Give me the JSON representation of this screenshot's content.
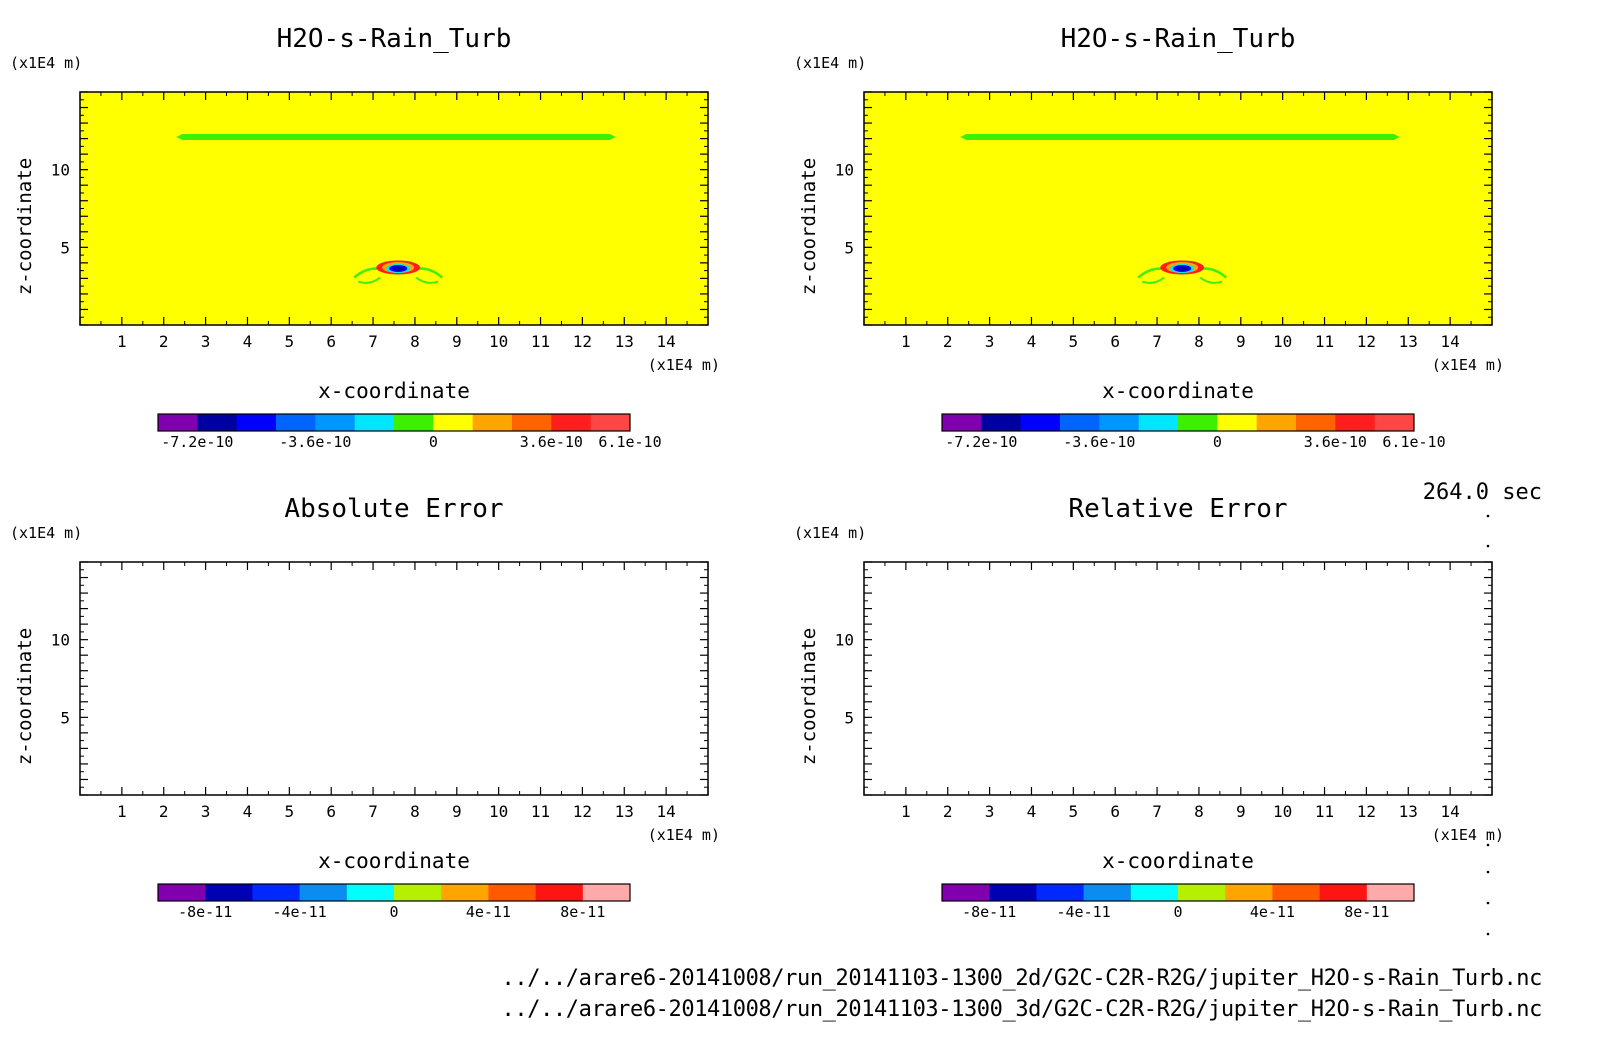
{
  "chart_data": [
    {
      "type": "heatmap",
      "title": "H2O-s-Rain_Turb",
      "xlabel": "x-coordinate",
      "ylabel": "z-coordinate",
      "x_unit": "(x1E4 m)",
      "y_unit": "(x1E4 m)",
      "xlim": [
        0,
        15
      ],
      "ylim": [
        0,
        15
      ],
      "x_ticks": [
        1,
        2,
        3,
        4,
        5,
        6,
        7,
        8,
        9,
        10,
        11,
        12,
        13,
        14
      ],
      "y_ticks": [
        5,
        10
      ],
      "background_value": 0,
      "features": [
        {
          "kind": "band",
          "x_range": [
            2.3,
            12.8
          ],
          "z": 12.1,
          "sign": "slightly-negative"
        },
        {
          "kind": "blob",
          "x": 7.6,
          "z": 3.7,
          "sign": "mixed"
        }
      ],
      "colorbar": {
        "colors": [
          "#8000b0",
          "#0000a0",
          "#0000ff",
          "#0064ff",
          "#0096ff",
          "#00e6ff",
          "#3cf000",
          "#ffff00",
          "#ffa500",
          "#ff6400",
          "#ff1e1e",
          "#ff4646"
        ],
        "tick_labels": [
          "-7.2e-10",
          "-3.6e-10",
          "0",
          "3.6e-10",
          "6.1e-10"
        ]
      }
    },
    {
      "type": "heatmap",
      "title": "H2O-s-Rain_Turb",
      "xlabel": "x-coordinate",
      "ylabel": "z-coordinate",
      "x_unit": "(x1E4 m)",
      "y_unit": "(x1E4 m)",
      "xlim": [
        0,
        15
      ],
      "ylim": [
        0,
        15
      ],
      "x_ticks": [
        1,
        2,
        3,
        4,
        5,
        6,
        7,
        8,
        9,
        10,
        11,
        12,
        13,
        14
      ],
      "y_ticks": [
        5,
        10
      ],
      "background_value": 0,
      "features": [
        {
          "kind": "band",
          "x_range": [
            2.3,
            12.8
          ],
          "z": 12.1,
          "sign": "slightly-negative"
        },
        {
          "kind": "blob",
          "x": 7.6,
          "z": 3.7,
          "sign": "mixed"
        }
      ],
      "colorbar": {
        "colors": [
          "#8000b0",
          "#0000a0",
          "#0000ff",
          "#0064ff",
          "#0096ff",
          "#00e6ff",
          "#3cf000",
          "#ffff00",
          "#ffa500",
          "#ff6400",
          "#ff1e1e",
          "#ff4646"
        ],
        "tick_labels": [
          "-7.2e-10",
          "-3.6e-10",
          "0",
          "3.6e-10",
          "6.1e-10"
        ]
      }
    },
    {
      "type": "heatmap",
      "title": "Absolute Error",
      "xlabel": "x-coordinate",
      "ylabel": "z-coordinate",
      "x_unit": "(x1E4 m)",
      "y_unit": "(x1E4 m)",
      "xlim": [
        0,
        15
      ],
      "ylim": [
        0,
        15
      ],
      "x_ticks": [
        1,
        2,
        3,
        4,
        5,
        6,
        7,
        8,
        9,
        10,
        11,
        12,
        13,
        14
      ],
      "y_ticks": [
        5,
        10
      ],
      "background_value": null,
      "features": [],
      "colorbar": {
        "colors": [
          "#8000b0",
          "#0000b4",
          "#0028ff",
          "#0a8cf0",
          "#00ffff",
          "#b4f000",
          "#ffa500",
          "#ff5a00",
          "#ff1414",
          "#ffaaaa"
        ],
        "tick_labels": [
          "-8e-11",
          "-4e-11",
          "0",
          "4e-11",
          "8e-11"
        ]
      }
    },
    {
      "type": "heatmap",
      "title": "Relative Error",
      "xlabel": "x-coordinate",
      "ylabel": "z-coordinate",
      "x_unit": "(x1E4 m)",
      "y_unit": "(x1E4 m)",
      "xlim": [
        0,
        15
      ],
      "ylim": [
        0,
        15
      ],
      "x_ticks": [
        1,
        2,
        3,
        4,
        5,
        6,
        7,
        8,
        9,
        10,
        11,
        12,
        13,
        14
      ],
      "y_ticks": [
        5,
        10
      ],
      "background_value": null,
      "features": [],
      "colorbar": {
        "colors": [
          "#8000b0",
          "#0000b4",
          "#0028ff",
          "#0a8cf0",
          "#00ffff",
          "#b4f000",
          "#ffa500",
          "#ff5a00",
          "#ff1414",
          "#ffaaaa"
        ],
        "tick_labels": [
          "-8e-11",
          "-4e-11",
          "0",
          "4e-11",
          "8e-11"
        ]
      }
    }
  ],
  "time_label": "264.0 sec",
  "file_paths": [
    "../../arare6-20141008/run_20141103-1300_2d/G2C-C2R-R2G/jupiter_H2O-s-Rain_Turb.nc",
    "../../arare6-20141008/run_20141103-1300_3d/G2C-C2R-R2G/jupiter_H2O-s-Rain_Turb.nc"
  ],
  "colors": {
    "field_background": "#ffff00",
    "band": "#3cf000",
    "axis": "#000000"
  }
}
